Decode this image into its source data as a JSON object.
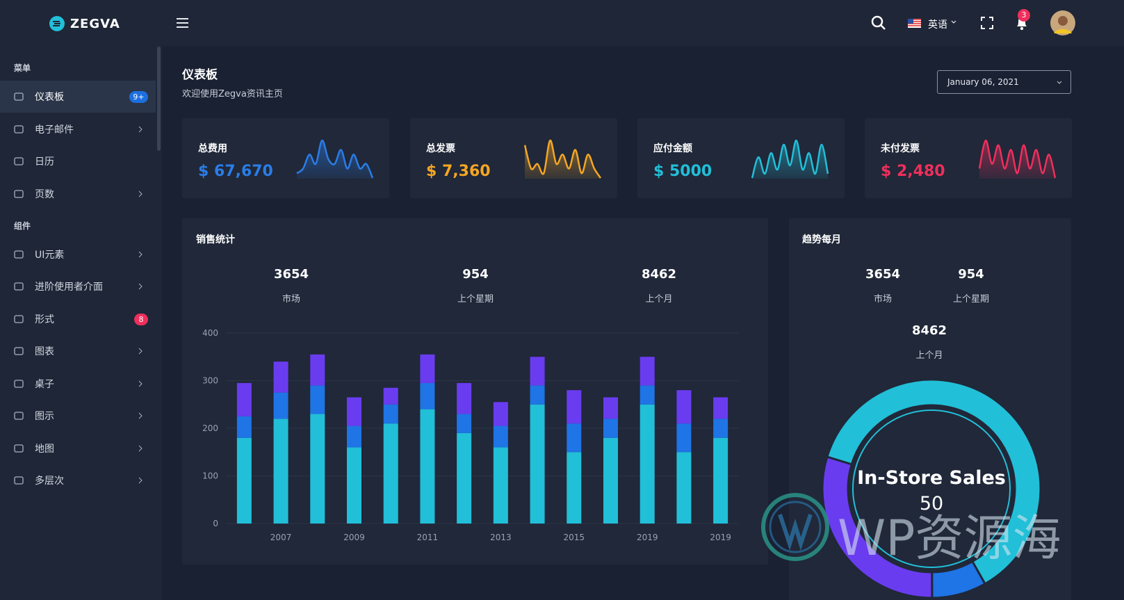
{
  "brand": "ZEGVA",
  "header": {
    "language": "英语",
    "notifications": "3"
  },
  "sidebar": {
    "sections": [
      {
        "title": "菜单",
        "items": [
          {
            "label": "仪表板",
            "active": true,
            "badge": {
              "text": "9+",
              "color": "#1d6fe0"
            }
          },
          {
            "label": "电子邮件",
            "submenu": true
          },
          {
            "label": "日历"
          },
          {
            "label": "页数",
            "submenu": true
          }
        ]
      },
      {
        "title": "组件",
        "items": [
          {
            "label": "UI元素",
            "submenu": true
          },
          {
            "label": "进阶使用者介面",
            "submenu": true
          },
          {
            "label": "形式",
            "badge": {
              "text": "8",
              "color": "#ef2f5c"
            }
          },
          {
            "label": "图表",
            "submenu": true
          },
          {
            "label": "桌子",
            "submenu": true
          },
          {
            "label": "图示",
            "submenu": true
          },
          {
            "label": "地图",
            "submenu": true
          },
          {
            "label": "多层次",
            "submenu": true
          }
        ]
      }
    ]
  },
  "page": {
    "title": "仪表板",
    "subtitle": "欢迎使用Zegva资讯主页",
    "date": "January 06, 2021"
  },
  "stats": [
    {
      "label": "总费用",
      "value": "$ 67,670",
      "color": "#2a7de8",
      "spark": [
        1,
        2,
        5,
        3,
        8,
        4,
        3,
        6,
        2,
        5,
        2,
        3,
        0
      ]
    },
    {
      "label": "总发票",
      "value": "$ 7,360",
      "color": "#f5a623",
      "spark": [
        8,
        3,
        4,
        2,
        9,
        4,
        6,
        3,
        7,
        2,
        6,
        3,
        1
      ]
    },
    {
      "label": "应付金额",
      "value": "$ 5000",
      "color": "#22bfd8",
      "spark": [
        0,
        5,
        1,
        6,
        2,
        8,
        3,
        9,
        2,
        6,
        1,
        8,
        1
      ]
    },
    {
      "label": "未付发票",
      "value": "$ 2,480",
      "color": "#ef2f5c",
      "spark": [
        3,
        9,
        4,
        8,
        3,
        7,
        2,
        8,
        3,
        7,
        2,
        6,
        1
      ]
    }
  ],
  "sales_summary": [
    {
      "value": "3654",
      "label": "市场"
    },
    {
      "value": "954",
      "label": "上个星期"
    },
    {
      "value": "8462",
      "label": "上个月"
    }
  ],
  "trend_summary": [
    {
      "value": "3654",
      "label": "市场"
    },
    {
      "value": "954",
      "label": "上个星期"
    },
    {
      "value": "8462",
      "label": "上个月"
    }
  ],
  "chart_data": [
    {
      "type": "bar",
      "stacked": true,
      "title": "销售统计",
      "categories": [
        null,
        "2007",
        null,
        "2009",
        null,
        "2011",
        null,
        "2013",
        null,
        "2015",
        null,
        "2019",
        null,
        "2019"
      ],
      "series": [
        {
          "color": "#22bfd8",
          "values": [
            180,
            220,
            230,
            160,
            210,
            240,
            190,
            160,
            250,
            150,
            180,
            250,
            150,
            180
          ]
        },
        {
          "color": "#1f74e6",
          "values": [
            45,
            55,
            60,
            45,
            40,
            55,
            40,
            45,
            40,
            60,
            40,
            40,
            60,
            40
          ]
        },
        {
          "color": "#6a3cf0",
          "values": [
            70,
            65,
            65,
            60,
            35,
            60,
            65,
            50,
            60,
            70,
            45,
            60,
            70,
            45
          ]
        }
      ],
      "ylim": [
        0,
        400
      ],
      "yticks": [
        0,
        100,
        200,
        300,
        400
      ],
      "grid": true
    },
    {
      "type": "donut",
      "title": "趋势每月",
      "labels": [
        "In-Store Sales",
        null,
        null
      ],
      "values": [
        50,
        6.5,
        24
      ],
      "colors": [
        "#22bfd8",
        "#1f74e6",
        "#6a3cf0"
      ]
    }
  ],
  "watermark": "WP资源海"
}
